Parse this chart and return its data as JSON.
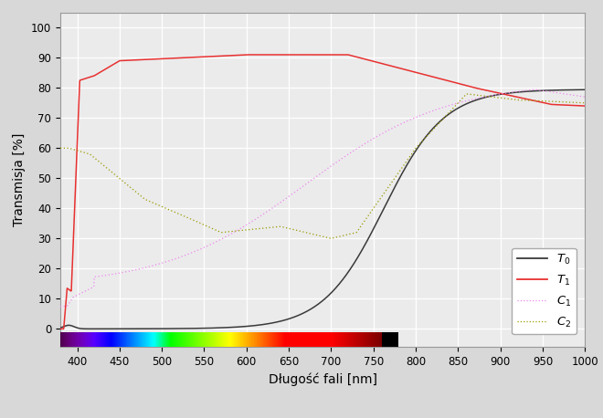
{
  "xlabel": "Długość fali [nm]",
  "ylabel": "Transmisja [%]",
  "xlim": [
    380,
    1000
  ],
  "ylim": [
    -6,
    105
  ],
  "yticks": [
    0,
    10,
    20,
    30,
    40,
    50,
    60,
    70,
    80,
    90,
    100
  ],
  "xticks": [
    400,
    450,
    500,
    550,
    600,
    650,
    700,
    750,
    800,
    850,
    900,
    950,
    1000
  ],
  "plot_bg": "#ebebeb",
  "fig_bg": "#d8d8d8",
  "grid_color": "#ffffff",
  "T0_color": "#3a3a3a",
  "T1_color": "#e83030",
  "C1_color": "#ee88ee",
  "C2_color": "#999900",
  "spectrum_xmin": 380,
  "spectrum_xmax": 780,
  "bar_ymin": -6,
  "bar_ymax": -1
}
